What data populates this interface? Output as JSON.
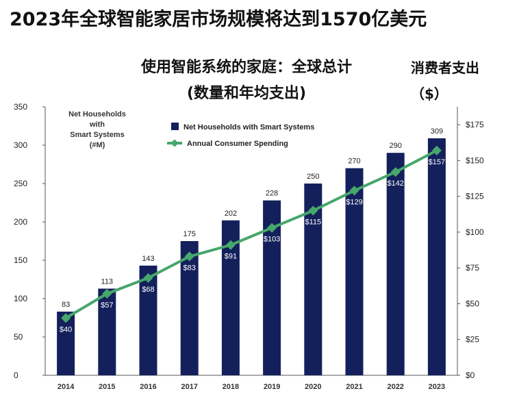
{
  "headline": "2023年全球智能家居市场规模将达到1570亿美元",
  "chart_data": {
    "type": "bar",
    "title_line1": "使用智能系统的家庭：全球总计",
    "title_line2": "(数量和年均支出)",
    "left_axis_note": "Net Households\nwith\nSmart Systems\n(#M)",
    "right_axis_title": "消费者支出（$）",
    "categories": [
      "2014",
      "2015",
      "2016",
      "2017",
      "2018",
      "2019",
      "2020",
      "2021",
      "2022",
      "2023"
    ],
    "series": [
      {
        "name": "Net Households with Smart Systems",
        "type": "bar",
        "axis": "left",
        "values": [
          83,
          113,
          143,
          175,
          202,
          228,
          250,
          270,
          290,
          309
        ],
        "color": "#14205c"
      },
      {
        "name": "Annual Consumer Spending",
        "type": "line",
        "axis": "right",
        "values": [
          40,
          57,
          68,
          83,
          91,
          103,
          115,
          129,
          142,
          157
        ],
        "labels": [
          "$40",
          "$57",
          "$68",
          "$83",
          "$91",
          "$103",
          "$115",
          "$129",
          "$142",
          "$157"
        ],
        "color": "#46a66b"
      }
    ],
    "y_left": {
      "ticks": [
        0,
        50,
        100,
        150,
        200,
        250,
        300,
        350
      ],
      "ylim": [
        0,
        350
      ]
    },
    "y_right": {
      "ticks": [
        0,
        25,
        50,
        75,
        100,
        125,
        150,
        175
      ],
      "tick_labels": [
        "$0",
        "$25",
        "$50",
        "$75",
        "$100",
        "$125",
        "$150",
        "$175"
      ],
      "ylim": [
        0,
        187.5
      ]
    },
    "grid": false,
    "legend_position": "top-center"
  }
}
